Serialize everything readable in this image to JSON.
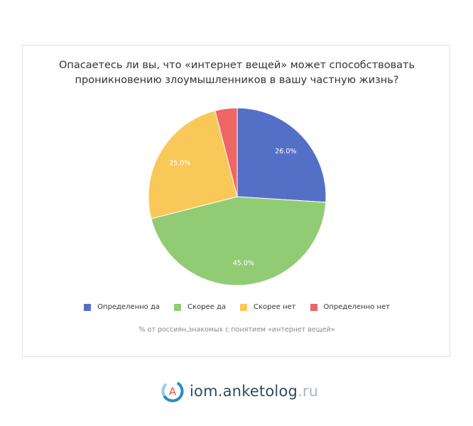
{
  "chart_data": {
    "type": "pie",
    "title_lines": [
      "Опасаетесь ли вы, что «интернет вещей» может способствовать",
      "проникновению злоумышленников в вашу частную жизнь?"
    ],
    "subtitle": "% от россиян,знакомых с понятием «интернет вещей»",
    "categories": [
      "Определенно да",
      "Скорее да",
      "Скорее нет",
      "Определенно нет"
    ],
    "values": [
      26.0,
      45.0,
      25.0,
      4.0
    ],
    "value_labels": [
      "26.0%",
      "45.0%",
      "25.0%",
      ""
    ],
    "colors": [
      "#5470c6",
      "#91cc75",
      "#fac858",
      "#ee6666"
    ],
    "legend_position": "bottom"
  },
  "brand": {
    "logo_letter": "A",
    "domain": "iom.anketolog",
    "tld": ".ru",
    "logo_icon": "anketolog-logo-icon"
  }
}
